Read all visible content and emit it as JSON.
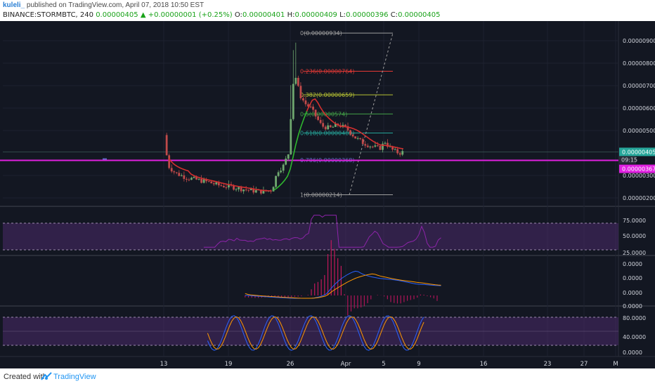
{
  "header": {
    "author": "kuleli_",
    "published": "published on TradingView.com, April 07, 2018 10:50 EST",
    "symbol": "BINANCE:STORMBTC, 240",
    "last": "0.00000405",
    "change": "+0.00000001 (+0.25%)",
    "ohlc": {
      "o_label": "O:",
      "o": "0.00000401",
      "h_label": "H:",
      "h": "0.00000409",
      "l_label": "L:",
      "l": "0.00000396",
      "c_label": "C:",
      "c": "0.00000405"
    }
  },
  "footer": {
    "created": "Created with",
    "brand": "TradingView"
  },
  "colors": {
    "bg": "#131722",
    "grid": "#1e2230",
    "magenta": "#e020e0",
    "up": "#6fa86f",
    "down": "#c04a4a",
    "ma_red": "#d32f2f",
    "ma_green": "#2fb62f",
    "rsi": "#8e24aa",
    "band": "#4a2a6a"
  },
  "chart_data": {
    "type": "candlestick",
    "x_labels": [
      "13",
      "19",
      "26",
      "Apr",
      "5",
      "9",
      "16",
      "23",
      "27",
      "M"
    ],
    "price_axis": {
      "ticks": [
        "0.00000900",
        "0.00000800",
        "0.00000700",
        "0.00000600",
        "0.00000500",
        "0.00000300",
        "0.00000200"
      ],
      "last_price": "0.00000405",
      "countdown": "09:15",
      "line_price": "0.00000367"
    },
    "fib_levels": [
      {
        "label": "0(0.00000934)",
        "value": 9.34e-06,
        "color": "#9e9e9e"
      },
      {
        "label": "0.236(0.00000764)",
        "value": 7.64e-06,
        "color": "#e53935"
      },
      {
        "label": "0.382(0.00000659)",
        "value": 6.59e-06,
        "color": "#b6c233"
      },
      {
        "label": "0.5(0.00000574)",
        "value": 5.74e-06,
        "color": "#43a047"
      },
      {
        "label": "0.618(0.00000489)",
        "value": 4.89e-06,
        "color": "#26a69a"
      },
      {
        "label": "0.786(0.00000368)",
        "value": 3.68e-06,
        "color": "#5c6bc0"
      },
      {
        "label": "1(0.00000214)",
        "value": 2.14e-06,
        "color": "#9e9e9e"
      }
    ],
    "horizontal_line": 3.67e-06,
    "price_series": [
      {
        "x": 0.0,
        "v": 4.8e-06
      },
      {
        "x": 0.6,
        "v": 3.45e-06
      },
      {
        "x": 2,
        "v": 3.1e-06
      },
      {
        "x": 4,
        "v": 2.9e-06
      },
      {
        "x": 6,
        "v": 2.8e-06
      },
      {
        "x": 8,
        "v": 2.7e-06
      },
      {
        "x": 10,
        "v": 2.55e-06
      },
      {
        "x": 12,
        "v": 2.5e-06
      },
      {
        "x": 14,
        "v": 2.4e-06
      },
      {
        "x": 16,
        "v": 2.32e-06
      },
      {
        "x": 18,
        "v": 2.28e-06
      },
      {
        "x": 19.5,
        "v": 2.36e-06
      },
      {
        "x": 20.5,
        "v": 3.2e-06
      },
      {
        "x": 21.5,
        "v": 3.4e-06
      },
      {
        "x": 22.5,
        "v": 4e-06
      },
      {
        "x": 23.0,
        "v": 6e-06
      },
      {
        "x": 23.5,
        "v": 7.6e-06
      },
      {
        "x": 24.0,
        "v": 7.2e-06
      },
      {
        "x": 24.5,
        "v": 6.6e-06
      },
      {
        "x": 25.5,
        "v": 6.2e-06
      },
      {
        "x": 26.5,
        "v": 6e-06
      },
      {
        "x": 27.5,
        "v": 5.6e-06
      },
      {
        "x": 28.5,
        "v": 5.2e-06
      },
      {
        "x": 30,
        "v": 5.1e-06
      },
      {
        "x": 31.5,
        "v": 5.25e-06
      },
      {
        "x": 33,
        "v": 5.1e-06
      },
      {
        "x": 34.5,
        "v": 4.7e-06
      },
      {
        "x": 36,
        "v": 4.45e-06
      },
      {
        "x": 37.5,
        "v": 4.3e-06
      },
      {
        "x": 39,
        "v": 4.2e-06
      },
      {
        "x": 40,
        "v": 4.5e-06
      },
      {
        "x": 40.6,
        "v": 4.3e-06
      },
      {
        "x": 41.5,
        "v": 4.1e-06
      },
      {
        "x": 42.5,
        "v": 4e-06
      },
      {
        "x": 43.5,
        "v": 4.05e-06
      }
    ],
    "indicators": {
      "rsi": {
        "ticks": [
          "75.0000",
          "50.0000",
          "25.0000"
        ]
      },
      "macd": {
        "ticks": [
          "0.0000",
          "0.0000",
          "0.0000",
          "0.0000"
        ]
      },
      "stoch": {
        "ticks": [
          "80.0000",
          "40.0000",
          "0.0000"
        ]
      }
    }
  }
}
